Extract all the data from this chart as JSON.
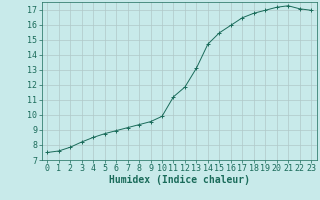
{
  "x": [
    0,
    1,
    2,
    3,
    4,
    5,
    6,
    7,
    8,
    9,
    10,
    11,
    12,
    13,
    14,
    15,
    16,
    17,
    18,
    19,
    20,
    21,
    22,
    23
  ],
  "y": [
    7.5,
    7.6,
    7.85,
    8.2,
    8.5,
    8.75,
    8.95,
    9.15,
    9.35,
    9.55,
    9.9,
    11.2,
    11.85,
    13.1,
    14.7,
    15.45,
    15.95,
    16.45,
    16.75,
    16.95,
    17.15,
    17.25,
    17.05,
    16.95
  ],
  "line_color": "#1a6b5a",
  "marker": "+",
  "marker_size": 3,
  "bg_color": "#c8eaea",
  "grid_color": "#b0c8c8",
  "xlabel": "Humidex (Indice chaleur)",
  "xlabel_fontsize": 7,
  "tick_fontsize": 6,
  "xlim": [
    -0.5,
    23.5
  ],
  "ylim": [
    7,
    17.5
  ],
  "yticks": [
    7,
    8,
    9,
    10,
    11,
    12,
    13,
    14,
    15,
    16,
    17
  ],
  "xticks": [
    0,
    1,
    2,
    3,
    4,
    5,
    6,
    7,
    8,
    9,
    10,
    11,
    12,
    13,
    14,
    15,
    16,
    17,
    18,
    19,
    20,
    21,
    22,
    23
  ]
}
